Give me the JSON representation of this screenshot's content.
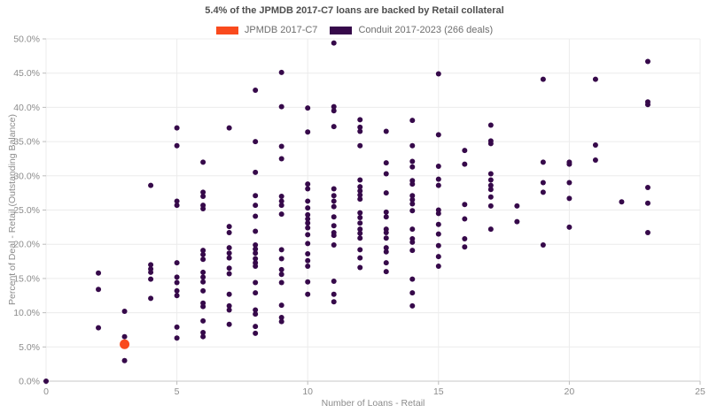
{
  "title": "5.4% of the JPMDB 2017-C7 loans are backed by Retail collateral",
  "legend": [
    {
      "label": "JPMDB 2017-C7",
      "color": "#f94a1d"
    },
    {
      "label": "Conduit 2017-2023 (266 deals)",
      "color": "#36094a"
    }
  ],
  "axes": {
    "x_label": "Number of Loans - Retail",
    "y_label": "Percent of Deal - Retail (Outstanding Balance)",
    "x_ticks": [
      "0",
      "5",
      "10",
      "15",
      "20",
      "25"
    ],
    "x_tick_values": [
      0,
      5,
      10,
      15,
      20,
      25
    ],
    "y_ticks": [
      "0.0%",
      "5.0%",
      "10.0%",
      "15.0%",
      "20.0%",
      "25.0%",
      "30.0%",
      "35.0%",
      "40.0%",
      "45.0%",
      "50.0%"
    ],
    "y_tick_values": [
      0,
      5,
      10,
      15,
      20,
      25,
      30,
      35,
      40,
      45,
      50
    ]
  },
  "colors": {
    "grid": "#ececec",
    "axis_line": "#c7c7c7",
    "tick_mark": "#bdbdbd",
    "tick_text": "#8c8c8c",
    "title_text": "#4f4f4f"
  },
  "chart_data": {
    "type": "scatter",
    "title": "5.4% of the JPMDB 2017-C7 loans are backed by Retail collateral",
    "xlabel": "Number of Loans - Retail",
    "ylabel": "Percent of Deal - Retail (Outstanding Balance)",
    "xlim": [
      0,
      25
    ],
    "ylim": [
      0,
      50
    ],
    "grid": true,
    "legend_position": "top",
    "series": [
      {
        "name": "JPMDB 2017-C7",
        "color": "#f94a1d",
        "marker_radius": 5.5,
        "points": [
          [
            3,
            5.4
          ]
        ]
      },
      {
        "name": "Conduit 2017-2023 (266 deals)",
        "color": "#36094a",
        "marker_radius": 3,
        "points": [
          [
            0,
            0.0
          ],
          [
            2,
            15.8
          ],
          [
            2,
            13.4
          ],
          [
            2,
            7.8
          ],
          [
            3,
            10.2
          ],
          [
            3,
            6.5
          ],
          [
            3,
            3.0
          ],
          [
            4,
            28.6
          ],
          [
            4,
            17.0
          ],
          [
            4,
            16.4
          ],
          [
            4,
            15.9
          ],
          [
            4,
            14.9
          ],
          [
            4,
            12.1
          ],
          [
            5,
            37.0
          ],
          [
            5,
            34.4
          ],
          [
            5,
            26.3
          ],
          [
            5,
            25.7
          ],
          [
            5,
            17.3
          ],
          [
            5,
            15.2
          ],
          [
            5,
            14.4
          ],
          [
            5,
            13.2
          ],
          [
            5,
            12.5
          ],
          [
            5,
            7.9
          ],
          [
            5,
            6.3
          ],
          [
            6,
            32.0
          ],
          [
            6,
            27.6
          ],
          [
            6,
            27.0
          ],
          [
            6,
            25.7
          ],
          [
            6,
            25.2
          ],
          [
            6,
            19.1
          ],
          [
            6,
            18.5
          ],
          [
            6,
            17.8
          ],
          [
            6,
            15.9
          ],
          [
            6,
            15.2
          ],
          [
            6,
            14.5
          ],
          [
            6,
            13.2
          ],
          [
            6,
            11.4
          ],
          [
            6,
            10.9
          ],
          [
            6,
            8.8
          ],
          [
            6,
            7.1
          ],
          [
            6,
            6.5
          ],
          [
            7,
            37.0
          ],
          [
            7,
            22.6
          ],
          [
            7,
            21.7
          ],
          [
            7,
            19.5
          ],
          [
            7,
            18.7
          ],
          [
            7,
            18.0
          ],
          [
            7,
            16.5
          ],
          [
            7,
            15.7
          ],
          [
            7,
            12.7
          ],
          [
            7,
            11.0
          ],
          [
            7,
            10.4
          ],
          [
            7,
            8.3
          ],
          [
            8,
            42.5
          ],
          [
            8,
            35.0
          ],
          [
            8,
            30.5
          ],
          [
            8,
            27.1
          ],
          [
            8,
            25.7
          ],
          [
            8,
            24.1
          ],
          [
            8,
            21.9
          ],
          [
            8,
            19.9
          ],
          [
            8,
            19.3
          ],
          [
            8,
            18.7
          ],
          [
            8,
            17.9
          ],
          [
            8,
            17.3
          ],
          [
            8,
            16.8
          ],
          [
            8,
            14.4
          ],
          [
            8,
            12.9
          ],
          [
            8,
            10.4
          ],
          [
            8,
            9.8
          ],
          [
            8,
            8.0
          ],
          [
            8,
            7.0
          ],
          [
            9,
            45.1
          ],
          [
            9,
            40.1
          ],
          [
            9,
            34.3
          ],
          [
            9,
            32.5
          ],
          [
            9,
            27.0
          ],
          [
            9,
            26.3
          ],
          [
            9,
            25.7
          ],
          [
            9,
            24.4
          ],
          [
            9,
            19.2
          ],
          [
            9,
            17.9
          ],
          [
            9,
            16.3
          ],
          [
            9,
            15.6
          ],
          [
            9,
            14.4
          ],
          [
            9,
            11.1
          ],
          [
            9,
            9.3
          ],
          [
            9,
            8.7
          ],
          [
            10,
            39.9
          ],
          [
            10,
            36.4
          ],
          [
            10,
            28.8
          ],
          [
            10,
            28.1
          ],
          [
            10,
            26.3
          ],
          [
            10,
            25.3
          ],
          [
            10,
            24.3
          ],
          [
            10,
            23.7
          ],
          [
            10,
            23.1
          ],
          [
            10,
            22.4
          ],
          [
            10,
            21.4
          ],
          [
            10,
            20.1
          ],
          [
            10,
            18.6
          ],
          [
            10,
            17.6
          ],
          [
            10,
            16.8
          ],
          [
            10,
            14.5
          ],
          [
            10,
            12.7
          ],
          [
            11,
            49.4
          ],
          [
            11,
            40.1
          ],
          [
            11,
            39.5
          ],
          [
            11,
            37.2
          ],
          [
            11,
            28.1
          ],
          [
            11,
            27.1
          ],
          [
            11,
            26.3
          ],
          [
            11,
            25.5
          ],
          [
            11,
            24.0
          ],
          [
            11,
            22.7
          ],
          [
            11,
            21.7
          ],
          [
            11,
            21.3
          ],
          [
            11,
            19.9
          ],
          [
            11,
            14.6
          ],
          [
            11,
            12.7
          ],
          [
            11,
            11.6
          ],
          [
            12,
            38.2
          ],
          [
            12,
            37.1
          ],
          [
            12,
            36.5
          ],
          [
            12,
            34.4
          ],
          [
            12,
            29.4
          ],
          [
            12,
            28.4
          ],
          [
            12,
            27.8
          ],
          [
            12,
            27.2
          ],
          [
            12,
            26.6
          ],
          [
            12,
            24.6
          ],
          [
            12,
            23.9
          ],
          [
            12,
            23.1
          ],
          [
            12,
            22.2
          ],
          [
            12,
            21.6
          ],
          [
            12,
            20.9
          ],
          [
            12,
            19.2
          ],
          [
            12,
            18.0
          ],
          [
            12,
            16.6
          ],
          [
            13,
            36.5
          ],
          [
            13,
            31.9
          ],
          [
            13,
            30.3
          ],
          [
            13,
            27.5
          ],
          [
            13,
            24.7
          ],
          [
            13,
            24.0
          ],
          [
            13,
            22.2
          ],
          [
            13,
            21.7
          ],
          [
            13,
            20.9
          ],
          [
            13,
            19.5
          ],
          [
            13,
            18.9
          ],
          [
            13,
            17.3
          ],
          [
            13,
            16.0
          ],
          [
            14,
            38.1
          ],
          [
            14,
            34.4
          ],
          [
            14,
            32.1
          ],
          [
            14,
            31.3
          ],
          [
            14,
            29.3
          ],
          [
            14,
            28.8
          ],
          [
            14,
            27.1
          ],
          [
            14,
            26.5
          ],
          [
            14,
            25.9
          ],
          [
            14,
            24.9
          ],
          [
            14,
            22.2
          ],
          [
            14,
            20.8
          ],
          [
            14,
            20.3
          ],
          [
            14,
            19.1
          ],
          [
            14,
            14.9
          ],
          [
            14,
            12.9
          ],
          [
            14,
            11.0
          ],
          [
            15,
            44.9
          ],
          [
            15,
            36.0
          ],
          [
            15,
            31.4
          ],
          [
            15,
            29.5
          ],
          [
            15,
            28.6
          ],
          [
            15,
            25.0
          ],
          [
            15,
            24.5
          ],
          [
            15,
            22.9
          ],
          [
            15,
            21.5
          ],
          [
            15,
            19.8
          ],
          [
            15,
            18.2
          ],
          [
            15,
            16.8
          ],
          [
            16,
            33.7
          ],
          [
            16,
            31.7
          ],
          [
            16,
            25.8
          ],
          [
            16,
            23.7
          ],
          [
            16,
            20.8
          ],
          [
            16,
            19.6
          ],
          [
            17,
            37.4
          ],
          [
            17,
            35.1
          ],
          [
            17,
            34.7
          ],
          [
            17,
            30.3
          ],
          [
            17,
            29.4
          ],
          [
            17,
            28.6
          ],
          [
            17,
            28.0
          ],
          [
            17,
            26.9
          ],
          [
            17,
            25.6
          ],
          [
            17,
            22.2
          ],
          [
            18,
            25.6
          ],
          [
            18,
            23.3
          ],
          [
            19,
            44.1
          ],
          [
            19,
            32.0
          ],
          [
            19,
            29.0
          ],
          [
            19,
            27.6
          ],
          [
            19,
            19.9
          ],
          [
            20,
            32.0
          ],
          [
            20,
            31.7
          ],
          [
            20,
            29.0
          ],
          [
            20,
            26.7
          ],
          [
            20,
            22.5
          ],
          [
            21,
            44.1
          ],
          [
            21,
            34.5
          ],
          [
            21,
            32.3
          ],
          [
            22,
            26.2
          ],
          [
            23,
            46.7
          ],
          [
            23,
            40.8
          ],
          [
            23,
            40.4
          ],
          [
            23,
            28.3
          ],
          [
            23,
            26.0
          ],
          [
            23,
            21.7
          ]
        ]
      }
    ]
  }
}
